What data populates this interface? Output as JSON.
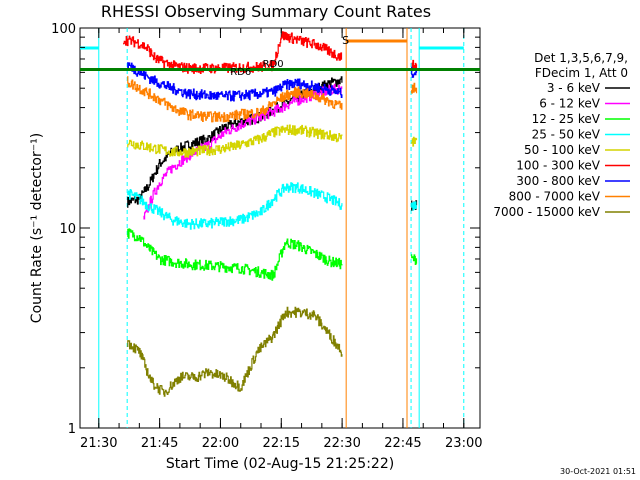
{
  "chart_data": {
    "type": "line",
    "title": "RHESSI Observing Summary Count Rates",
    "xlabel": "Start Time (02-Aug-15 21:25:22)",
    "ylabel": "Count Rate (s⁻¹ detector⁻¹)",
    "y_scale": "log",
    "ylim": [
      1,
      100
    ],
    "xlim": [
      "21:25:22",
      "23:04:00"
    ],
    "x_tick_labels": [
      "21:30",
      "21:45",
      "22:00",
      "22:15",
      "22:30",
      "22:45",
      "23:00"
    ],
    "y_tick_labels": [
      "1",
      "10",
      "100"
    ],
    "legend": {
      "placement": "right",
      "header": [
        "Det 1,3,5,6,7,9,",
        "FDecim 1, Att 0"
      ]
    },
    "series": [
      {
        "name": "3 - 6 keV",
        "color": "#000000",
        "points": [
          [
            "21:37",
            13.5
          ],
          [
            "21:40",
            14
          ],
          [
            "21:42",
            16
          ],
          [
            "21:45",
            21
          ],
          [
            "21:48",
            24
          ],
          [
            "21:52",
            26
          ],
          [
            "21:57",
            28
          ],
          [
            "22:01",
            32
          ],
          [
            "22:05",
            34
          ],
          [
            "22:10",
            36
          ],
          [
            "22:14",
            40
          ],
          [
            "22:17",
            43
          ],
          [
            "22:21",
            47
          ],
          [
            "22:24",
            50
          ],
          [
            "22:27",
            53
          ],
          [
            "22:30",
            55
          ],
          [
            "22:47",
            13
          ]
        ]
      },
      {
        "name": "6 - 12 keV",
        "color": "#ff00ff",
        "points": [
          [
            "21:41",
            11
          ],
          [
            "21:43",
            14
          ],
          [
            "21:45",
            17
          ],
          [
            "21:48",
            20
          ],
          [
            "21:52",
            23
          ],
          [
            "21:57",
            26
          ],
          [
            "22:01",
            30
          ],
          [
            "22:05",
            33
          ],
          [
            "22:10",
            36
          ],
          [
            "22:14",
            39
          ],
          [
            "22:17",
            42
          ],
          [
            "22:21",
            45
          ],
          [
            "22:24",
            47
          ],
          [
            "22:27",
            49
          ],
          [
            "22:30",
            50
          ]
        ]
      },
      {
        "name": "12 - 25 keV",
        "color": "#00ff00",
        "points": [
          [
            "21:37",
            9.5
          ],
          [
            "21:40",
            9
          ],
          [
            "21:42",
            8
          ],
          [
            "21:45",
            7
          ],
          [
            "21:48",
            6.8
          ],
          [
            "21:52",
            6.6
          ],
          [
            "21:57",
            6.5
          ],
          [
            "22:01",
            6.4
          ],
          [
            "22:05",
            6.3
          ],
          [
            "22:10",
            6
          ],
          [
            "22:13",
            5.8
          ],
          [
            "22:16",
            8.5
          ],
          [
            "22:19",
            8.2
          ],
          [
            "22:23",
            7.5
          ],
          [
            "22:27",
            6.8
          ],
          [
            "22:30",
            6.6
          ],
          [
            "22:47",
            7
          ]
        ]
      },
      {
        "name": "25 - 50 keV",
        "color": "#00ffff",
        "points": [
          [
            "21:37",
            15
          ],
          [
            "21:40",
            14
          ],
          [
            "21:42",
            13
          ],
          [
            "21:45",
            12
          ],
          [
            "21:48",
            11
          ],
          [
            "21:52",
            10.5
          ],
          [
            "21:57",
            10.5
          ],
          [
            "22:01",
            10.8
          ],
          [
            "22:05",
            11
          ],
          [
            "22:10",
            12
          ],
          [
            "22:13",
            14
          ],
          [
            "22:16",
            16
          ],
          [
            "22:19",
            16
          ],
          [
            "22:23",
            15
          ],
          [
            "22:27",
            14
          ],
          [
            "22:30",
            13
          ],
          [
            "22:47",
            13
          ]
        ]
      },
      {
        "name": "50 - 100 keV",
        "color": "#d4d400",
        "points": [
          [
            "21:37",
            27
          ],
          [
            "21:40",
            26
          ],
          [
            "21:44",
            25
          ],
          [
            "21:48",
            24
          ],
          [
            "21:52",
            24
          ],
          [
            "21:57",
            24.5
          ],
          [
            "22:01",
            25
          ],
          [
            "22:05",
            26
          ],
          [
            "22:10",
            28
          ],
          [
            "22:13",
            30
          ],
          [
            "22:16",
            31
          ],
          [
            "22:19",
            31
          ],
          [
            "22:23",
            30
          ],
          [
            "22:27",
            29
          ],
          [
            "22:30",
            28
          ],
          [
            "22:47",
            27
          ]
        ]
      },
      {
        "name": "100 - 300 keV",
        "color": "#ff0000",
        "points": [
          [
            "21:36",
            88
          ],
          [
            "21:40",
            84
          ],
          [
            "21:42",
            79
          ],
          [
            "21:44",
            70
          ],
          [
            "21:48",
            65
          ],
          [
            "21:52",
            63
          ],
          [
            "21:57",
            63
          ],
          [
            "22:01",
            63
          ],
          [
            "22:05",
            63.5
          ],
          [
            "22:10",
            64
          ],
          [
            "22:13",
            65
          ],
          [
            "22:15",
            92
          ],
          [
            "22:17",
            90
          ],
          [
            "22:20",
            86
          ],
          [
            "22:24",
            82
          ],
          [
            "22:27",
            76
          ],
          [
            "22:30",
            71
          ],
          [
            "22:47",
            65
          ]
        ]
      },
      {
        "name": "300 - 800 keV",
        "color": "#0000ff",
        "points": [
          [
            "21:37",
            66
          ],
          [
            "21:40",
            60
          ],
          [
            "21:44",
            54
          ],
          [
            "21:48",
            50
          ],
          [
            "21:52",
            47
          ],
          [
            "21:57",
            46
          ],
          [
            "22:01",
            45.5
          ],
          [
            "22:05",
            46
          ],
          [
            "22:10",
            47
          ],
          [
            "22:13",
            48
          ],
          [
            "22:16",
            52
          ],
          [
            "22:19",
            53
          ],
          [
            "22:23",
            51
          ],
          [
            "22:27",
            49
          ],
          [
            "22:30",
            47
          ],
          [
            "22:47",
            60
          ]
        ]
      },
      {
        "name": "800 - 7000 keV",
        "color": "#ff8000",
        "points": [
          [
            "21:37",
            54
          ],
          [
            "21:40",
            50
          ],
          [
            "21:44",
            45
          ],
          [
            "21:48",
            40
          ],
          [
            "21:52",
            37
          ],
          [
            "21:57",
            36
          ],
          [
            "22:01",
            36
          ],
          [
            "22:05",
            37
          ],
          [
            "22:10",
            38
          ],
          [
            "22:13",
            42
          ],
          [
            "22:16",
            46
          ],
          [
            "22:19",
            48
          ],
          [
            "22:23",
            46
          ],
          [
            "22:27",
            43
          ],
          [
            "22:30",
            40
          ],
          [
            "22:47",
            50
          ]
        ]
      },
      {
        "name": "7000 - 15000 keV",
        "color": "#808000",
        "points": [
          [
            "21:37",
            2.7
          ],
          [
            "21:40",
            2.4
          ],
          [
            "21:43",
            1.7
          ],
          [
            "21:46",
            1.5
          ],
          [
            "21:50",
            1.8
          ],
          [
            "21:54",
            1.8
          ],
          [
            "21:57",
            1.9
          ],
          [
            "22:01",
            1.8
          ],
          [
            "22:05",
            1.6
          ],
          [
            "22:09",
            2.4
          ],
          [
            "22:13",
            2.9
          ],
          [
            "22:16",
            3.8
          ],
          [
            "22:19",
            3.8
          ],
          [
            "22:23",
            3.7
          ],
          [
            "22:27",
            2.9
          ],
          [
            "22:30",
            2.4
          ]
        ]
      }
    ],
    "annotations": {
      "flags": [
        {
          "label": "RD0",
          "color": "#000000",
          "start": "22:11",
          "end": "22:15"
        },
        {
          "label": "RD6",
          "color": "#008000",
          "start": "22:02",
          "end": "22:08"
        }
      ],
      "saa_label": "S",
      "saa_color": "#ff8000",
      "night_color": "#00ffff",
      "attenuator_color": "#008000",
      "attenuator_level": 62
    },
    "timestamp": "30-Oct-2021 01:51"
  }
}
